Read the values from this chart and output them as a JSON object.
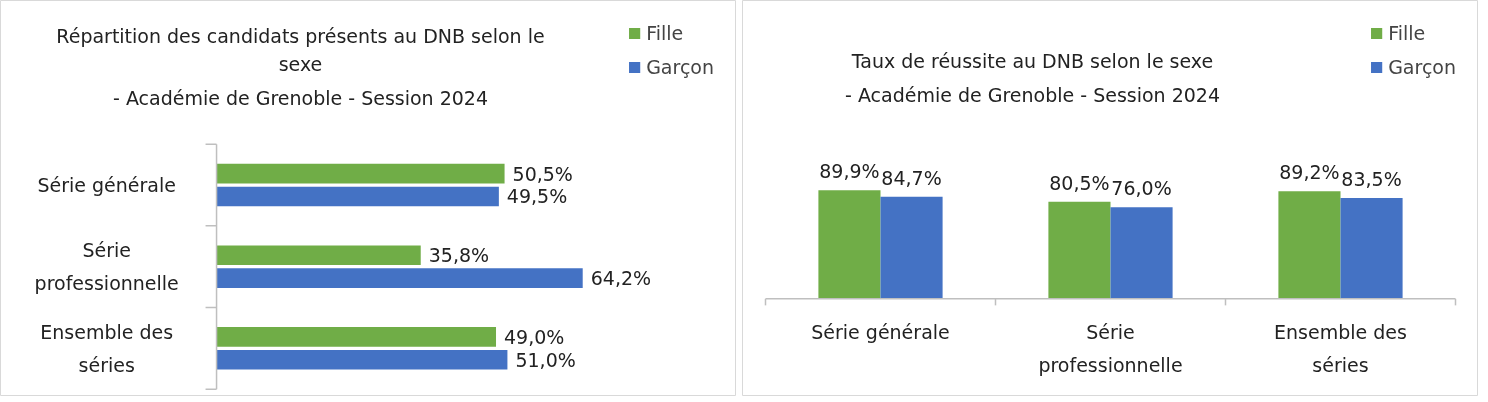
{
  "chart_data": [
    {
      "type": "bar",
      "orientation": "horizontal",
      "title": "Répartition des candidats présents au DNB selon le sexe",
      "subtitle": "- Académie de Grenoble - Session 2024",
      "categories": [
        "Série générale",
        "Série professionnelle",
        "Ensemble des séries"
      ],
      "series": [
        {
          "name": "Fille",
          "color": "#70ad47",
          "values": [
            50.5,
            35.8,
            49.0
          ],
          "value_labels": [
            "50,5%",
            "35,8%",
            "49,0%"
          ]
        },
        {
          "name": "Garçon",
          "color": "#4472c4",
          "values": [
            49.5,
            64.2,
            51.0
          ],
          "value_labels": [
            "49,5%",
            "64,2%",
            "51,0%"
          ]
        }
      ],
      "legend": "top right",
      "grid": false
    },
    {
      "type": "bar",
      "title": "Taux de réussite au DNB selon le sexe",
      "subtitle": "- Académie de Grenoble - Session 2024",
      "categories": [
        "Série générale",
        "Série professionnelle",
        "Ensemble des séries"
      ],
      "series": [
        {
          "name": "Fille",
          "color": "#70ad47",
          "values": [
            89.9,
            80.5,
            89.2
          ],
          "value_labels": [
            "89,9%",
            "80,5%",
            "89,2%"
          ]
        },
        {
          "name": "Garçon",
          "color": "#4472c4",
          "values": [
            84.7,
            76.0,
            83.5
          ],
          "value_labels": [
            "84,7%",
            "76,0%",
            "83,5%"
          ]
        }
      ],
      "legend": "top right",
      "grid": false
    }
  ]
}
